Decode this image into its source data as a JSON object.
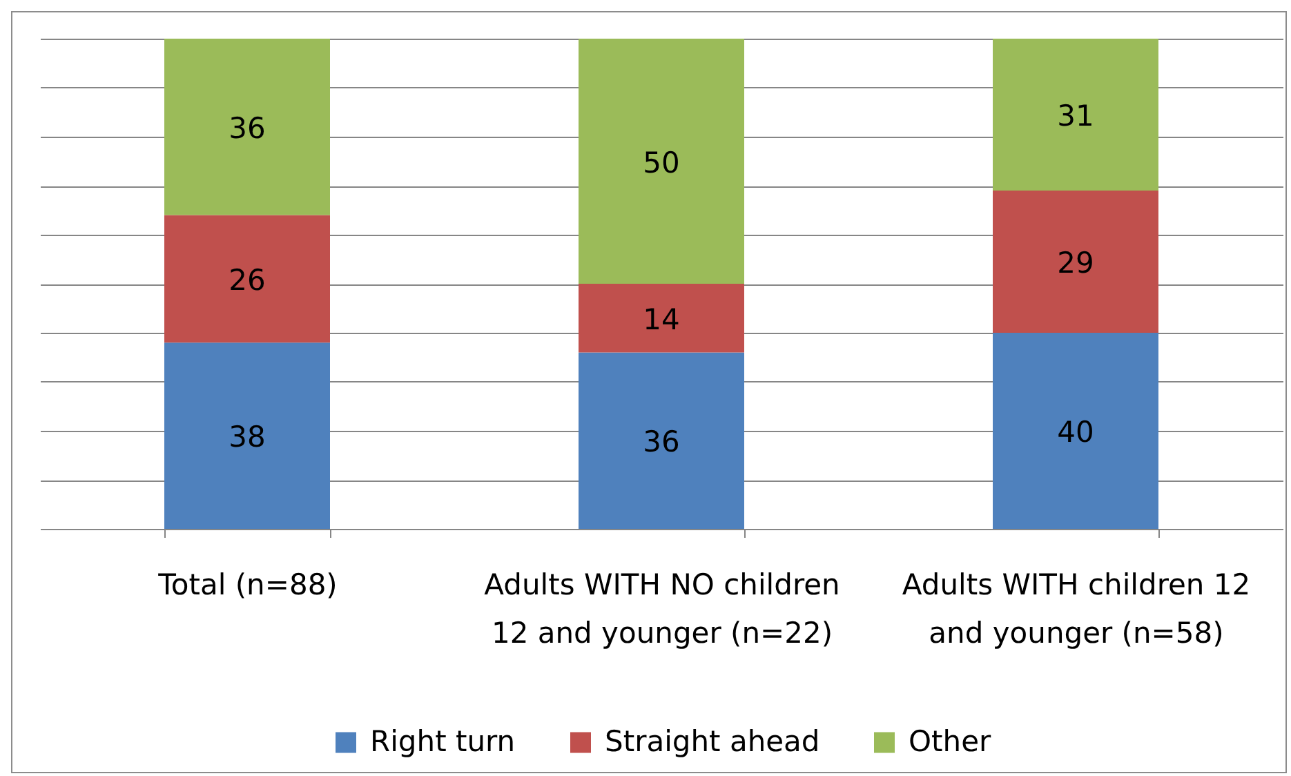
{
  "chart_data": {
    "type": "bar",
    "stacked": true,
    "categories": [
      "Total (n=88)",
      "Adults WITH NO children 12 and younger (n=22)",
      "Adults WITH children 12 and younger (n=58)"
    ],
    "series": [
      {
        "name": "Right turn",
        "color": "#4f81bd",
        "values": [
          38,
          36,
          40
        ]
      },
      {
        "name": "Straight ahead",
        "color": "#c0504d",
        "values": [
          26,
          14,
          29
        ]
      },
      {
        "name": "Other",
        "color": "#9bbb59",
        "values": [
          36,
          50,
          31
        ]
      }
    ],
    "ylim": [
      0,
      100
    ],
    "yticks": [
      {
        "value": 0,
        "label": null
      },
      {
        "value": 10,
        "label": null
      },
      {
        "value": 20,
        "label": null
      },
      {
        "value": 30,
        "label": null
      },
      {
        "value": 40,
        "label": null
      },
      {
        "value": 50,
        "label": null
      },
      {
        "value": 60,
        "label": null
      },
      {
        "value": 70,
        "label": null
      },
      {
        "value": 80,
        "label": null
      },
      {
        "value": 90,
        "label": null
      },
      {
        "value": 100,
        "label": null
      }
    ],
    "grid": "y",
    "legend": "bottom",
    "data_labels": true,
    "tick_labels": "x"
  }
}
